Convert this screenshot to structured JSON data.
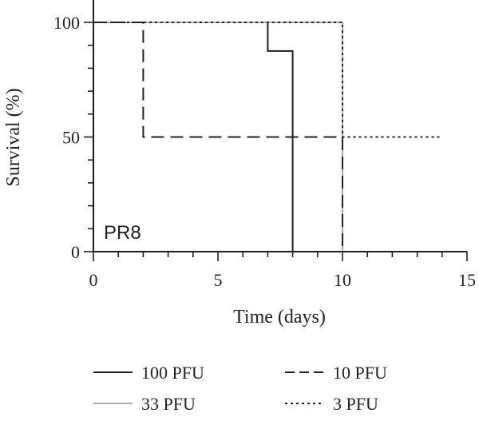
{
  "chart_data": {
    "type": "line",
    "subtype": "step",
    "xlabel": "Time (days)",
    "ylabel": "Survival (%)",
    "xlim": [
      0,
      15
    ],
    "ylim": [
      0,
      100
    ],
    "xticks": [
      0,
      5,
      10,
      15
    ],
    "yticks": [
      0,
      50,
      100
    ],
    "grid": false,
    "legend_position": "bottom",
    "annotations": [
      {
        "text": "PR8"
      }
    ],
    "series": [
      {
        "name": "100 PFU",
        "style": "solid",
        "color": "#231f20",
        "x": [
          0,
          7,
          7,
          8,
          8
        ],
        "y": [
          100,
          100,
          87.5,
          87.5,
          0
        ]
      },
      {
        "name": "33 PFU",
        "style": "solid",
        "color": "#a7a9ac",
        "x": [
          0,
          10,
          10
        ],
        "y": [
          100,
          100,
          0
        ]
      },
      {
        "name": "10 PFU",
        "style": "dashed",
        "color": "#231f20",
        "x": [
          0,
          2,
          2,
          10,
          10
        ],
        "y": [
          100,
          100,
          50,
          50,
          0
        ]
      },
      {
        "name": "3 PFU",
        "style": "dotted",
        "color": "#231f20",
        "x": [
          0,
          10,
          10,
          14
        ],
        "y": [
          100,
          100,
          50,
          50
        ]
      }
    ],
    "legend": [
      {
        "label": "100 PFU",
        "series": 0
      },
      {
        "label": "10 PFU",
        "series": 2
      },
      {
        "label": "33 PFU",
        "series": 1
      },
      {
        "label": "3 PFU",
        "series": 3
      }
    ]
  }
}
